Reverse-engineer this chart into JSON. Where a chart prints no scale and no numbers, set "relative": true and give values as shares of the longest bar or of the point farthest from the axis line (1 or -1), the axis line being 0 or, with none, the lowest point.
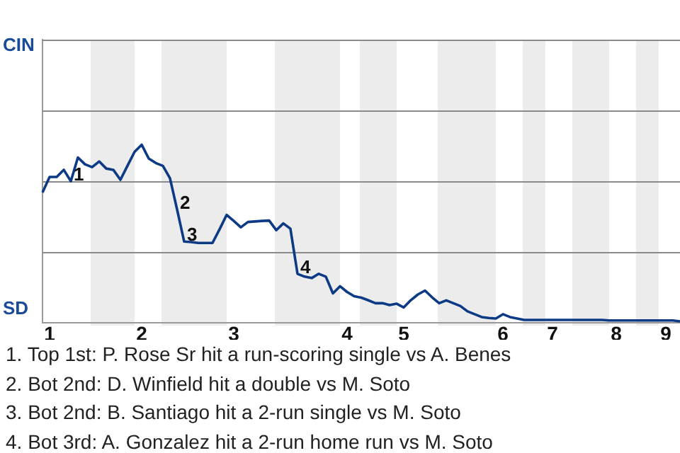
{
  "chart_data": {
    "type": "line",
    "relative": true,
    "categories": [
      null,
      "1",
      null,
      null,
      null,
      null,
      null,
      null,
      null,
      null,
      null,
      null,
      null,
      null,
      "2",
      null,
      null,
      null,
      null,
      null,
      null,
      null,
      null,
      null,
      null,
      null,
      null,
      "3",
      null,
      null,
      null,
      null,
      null,
      null,
      null,
      null,
      null,
      null,
      null,
      null,
      null,
      null,
      null,
      "4",
      null,
      null,
      null,
      null,
      null,
      null,
      null,
      "5",
      null,
      null,
      null,
      null,
      null,
      null,
      null,
      null,
      null,
      null,
      null,
      null,
      null,
      "6",
      null,
      null,
      null,
      null,
      null,
      null,
      "7",
      null,
      null,
      null,
      null,
      null,
      null,
      null,
      null,
      "8",
      null,
      null,
      null,
      null,
      null,
      null,
      "9",
      null,
      null
    ],
    "series": [
      {
        "color": "#0d3a85",
        "values": [
          0.731,
          0.819,
          0.819,
          0.859,
          0.795,
          0.928,
          0.89,
          0.874,
          0.906,
          0.866,
          0.859,
          0.803,
          0.882,
          0.96,
          1,
          0.922,
          0.897,
          0.881,
          0.811,
          0.636,
          0.456,
          0.453,
          0.448,
          0.448,
          0.448,
          0.525,
          0.606,
          0.572,
          0.536,
          0.566,
          0.569,
          0.572,
          0.574,
          0.52,
          0.558,
          0.528,
          0.275,
          0.259,
          0.251,
          0.275,
          0.259,
          0.165,
          0.205,
          0.173,
          0.149,
          0.141,
          0.126,
          0.11,
          0.11,
          0.099,
          0.107,
          0.086,
          0.127,
          0.159,
          0.181,
          0.143,
          0.11,
          0.126,
          0.11,
          0.094,
          0.064,
          0.048,
          0.032,
          0.027,
          0.024,
          0.048,
          0.032,
          0.024,
          0.016,
          0.016,
          0.016,
          0.016,
          0.016,
          0.016,
          0.016,
          0.016,
          0.016,
          0.016,
          0.016,
          0.016,
          0.013,
          0.013,
          0.013,
          0.013,
          0.013,
          0.013,
          0.013,
          0.013,
          0.013,
          0.013,
          0.008
        ]
      }
    ],
    "ref_lines": [
      {
        "axis": "y",
        "value": 0.397,
        "color": "#8a8a8a"
      },
      {
        "axis": "y",
        "value": 0.795,
        "color": "#8a8a8a"
      },
      {
        "axis": "y",
        "value": 1.192,
        "color": "#8a8a8a"
      },
      {
        "axis": "y",
        "value": 1.59,
        "color": "#8a8a8a"
      }
    ],
    "legend": false,
    "marker": "none",
    "line_style": "solid",
    "annotations": [
      "CIN",
      "SD",
      {
        "text": "1",
        "y": 0.795
      },
      {
        "text": "2",
        "y": 0.636
      },
      {
        "text": "3",
        "y": 0.456
      },
      {
        "text": "4",
        "y": 0.275
      },
      "1. Top 1st: P. Rose Sr hit a run-scoring single vs A. Benes",
      "2. Bot 2nd: D. Winfield hit a double vs M. Soto",
      "3. Bot 2nd: B. Santiago hit a 2-run single vs M. Soto",
      "4. Bot 3rd: A. Gonzalez hit a 2-run home run vs M. Soto"
    ]
  }
}
